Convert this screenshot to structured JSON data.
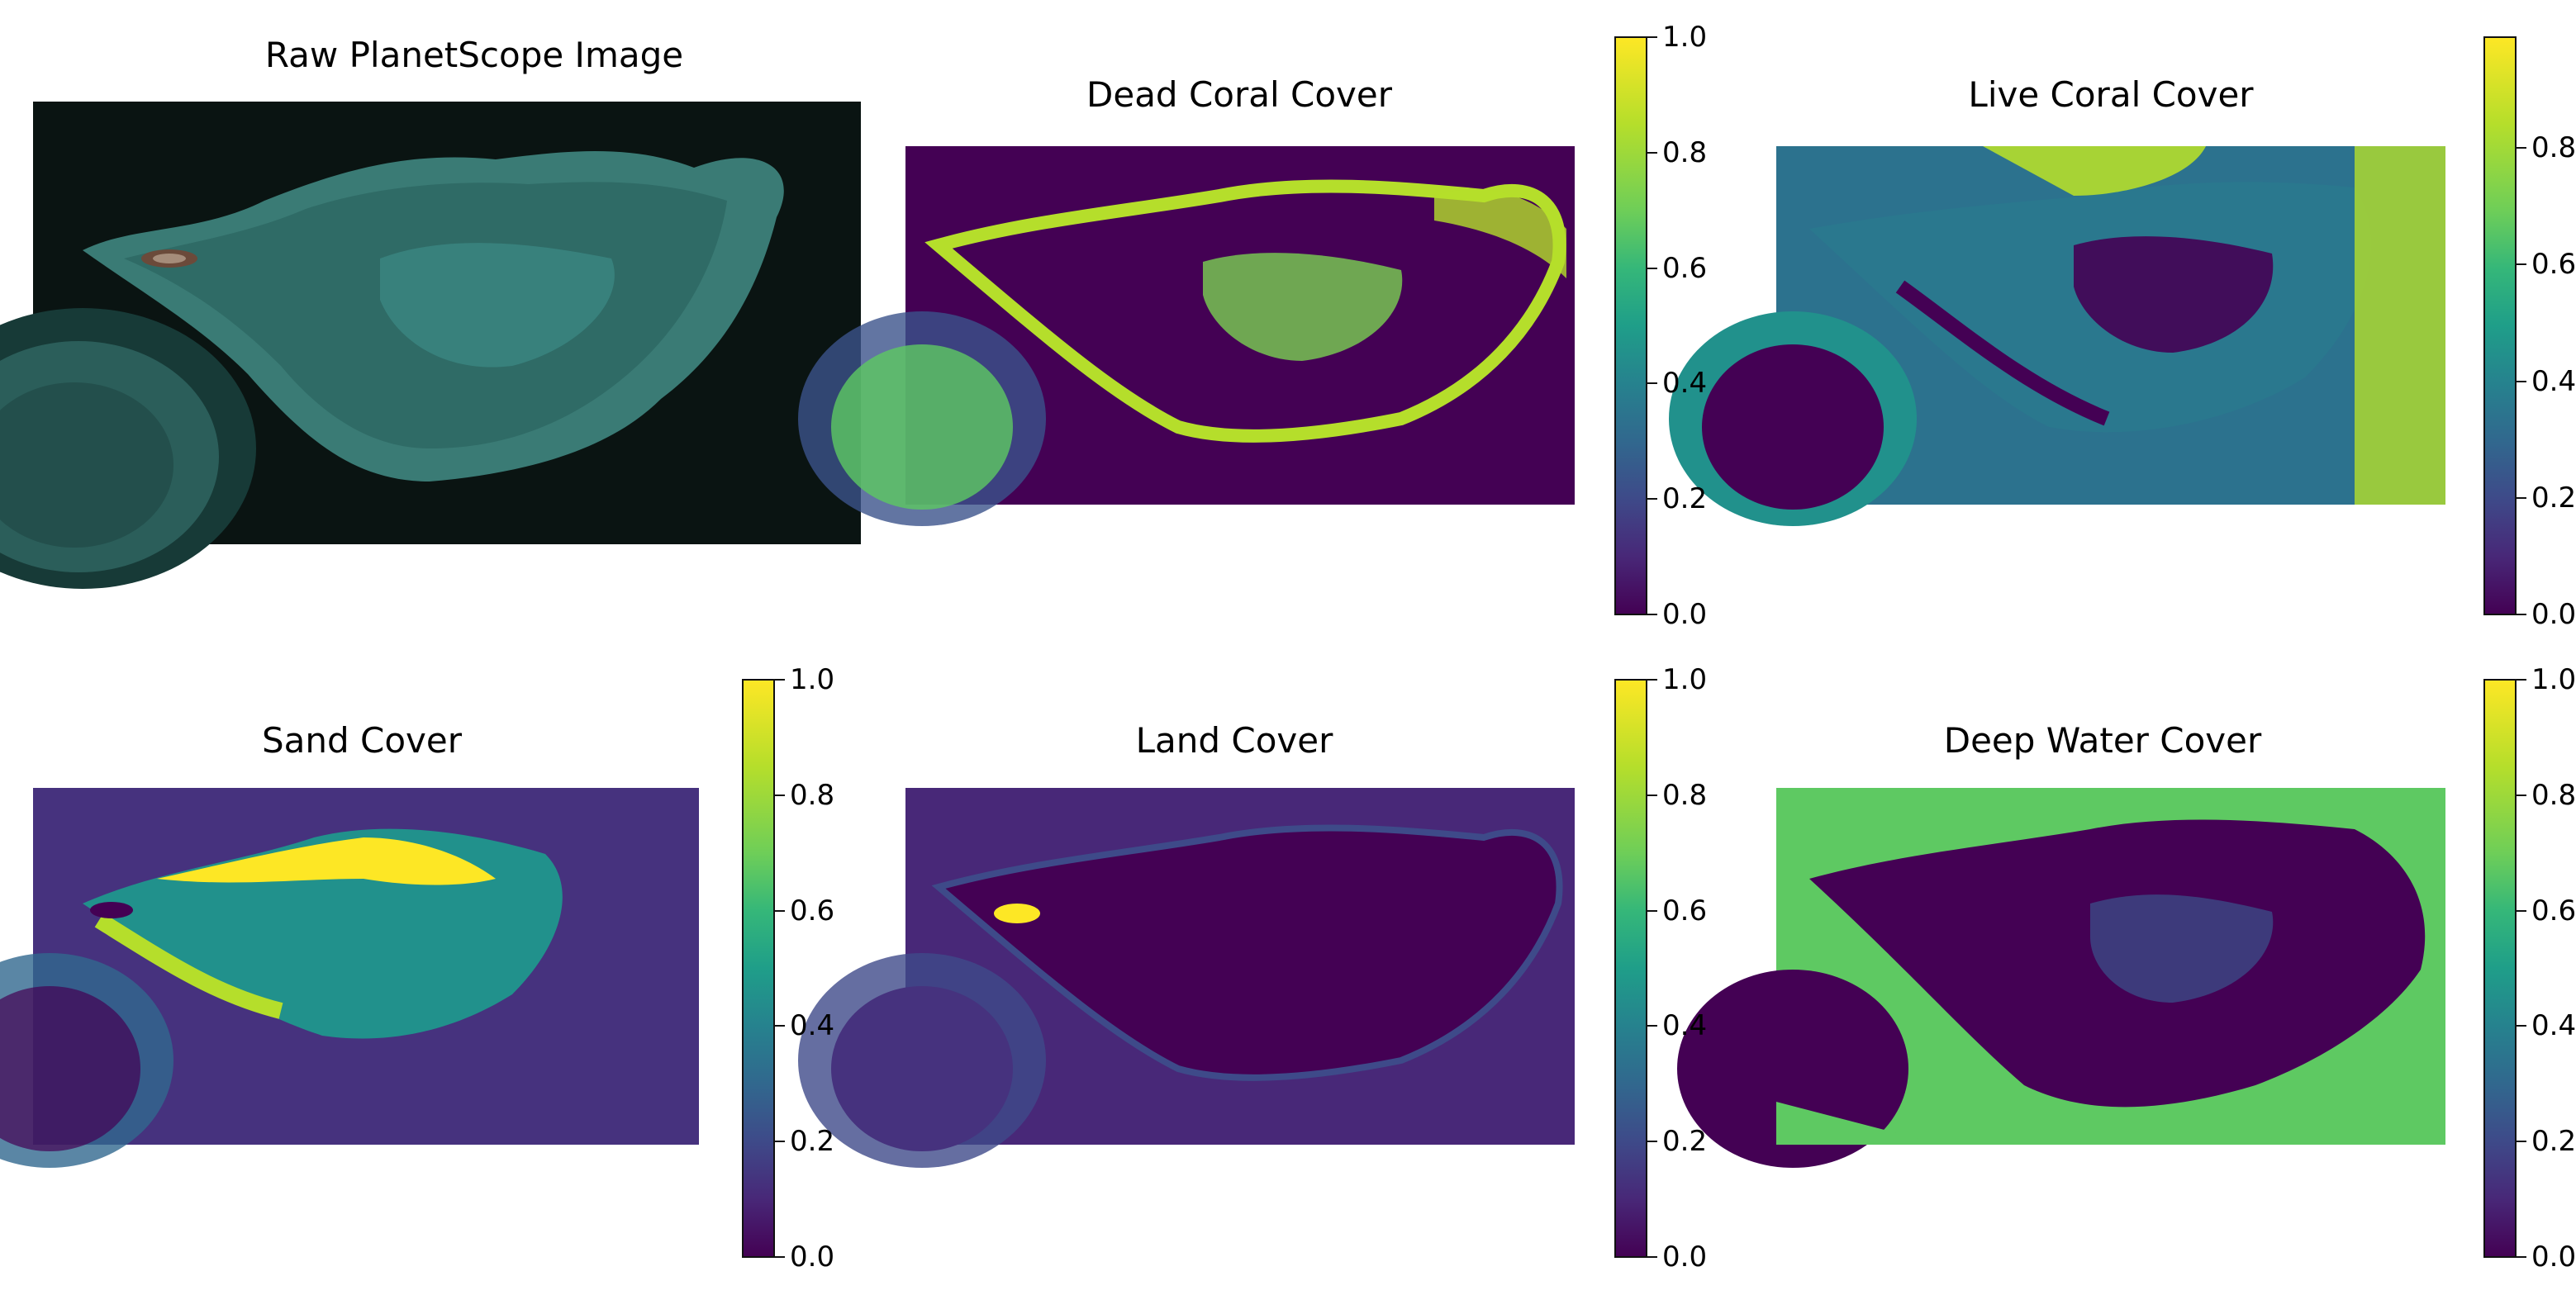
{
  "colors": {
    "viridis_low": "#440154",
    "viridis_mid": "#21918c",
    "viridis_high": "#fde725",
    "rgb_water": "#0a1412",
    "rgb_reef": "#2f6b66",
    "rgb_island": "#6b4a3a"
  },
  "panels": [
    {
      "id": "raw",
      "title": "Raw PlanetScope Image",
      "kind": "rgb"
    },
    {
      "id": "dead-coral",
      "title": "Dead Coral Cover",
      "kind": "map",
      "colorbar": {
        "ticks": [
          "0.0",
          "0.2",
          "0.4",
          "0.6",
          "0.8",
          "1.0"
        ]
      }
    },
    {
      "id": "live-coral",
      "title": "Live Coral Cover",
      "kind": "map",
      "colorbar": {
        "ticks": [
          "0.0",
          "0.2",
          "0.4",
          "0.6",
          "0.8"
        ]
      }
    },
    {
      "id": "sand",
      "title": "Sand Cover",
      "kind": "map",
      "colorbar": {
        "ticks": [
          "0.0",
          "0.2",
          "0.4",
          "0.6",
          "0.8",
          "1.0"
        ]
      }
    },
    {
      "id": "land",
      "title": "Land Cover",
      "kind": "map",
      "colorbar": {
        "ticks": [
          "0.0",
          "0.2",
          "0.4",
          "0.6",
          "0.8",
          "1.0"
        ]
      }
    },
    {
      "id": "deep-water",
      "title": "Deep Water Cover",
      "kind": "map",
      "colorbar": {
        "ticks": [
          "0.0",
          "0.2",
          "0.4",
          "0.6",
          "0.8",
          "1.0"
        ]
      }
    }
  ]
}
